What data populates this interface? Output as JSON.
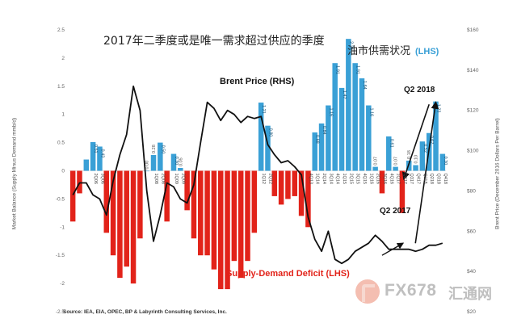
{
  "chart_data": {
    "type": "bar",
    "title": "2017年二季度或是唯一需求超过供应的季度",
    "subtitle": "油市供需状况",
    "subtitle_tag": "(LHS)",
    "ylabel": "Market Balance (Supply Minus Demand mmb/d)",
    "ylabel_right": "Brent Price (December 2016 Dollars Per Barrel)",
    "ylim": [
      -2.5,
      2.5
    ],
    "ylim_right": [
      20,
      160
    ],
    "left_ticks": [
      "2.5",
      "2",
      "1.5",
      "1",
      "0.5",
      "0",
      "-0.5",
      "-1",
      "-1.5",
      "-2",
      "-2.5"
    ],
    "right_ticks": [
      "$160",
      "$140",
      "$120",
      "$100",
      "$80",
      "$60",
      "$40",
      "$20"
    ],
    "x_tick_labels": [
      {
        "i": 3,
        "text": "2Q06"
      },
      {
        "i": 4,
        "text": "3Q06"
      },
      {
        "i": 12,
        "text": "1Q08"
      },
      {
        "i": 13,
        "text": "2Q08"
      },
      {
        "i": 15,
        "text": "1Q09"
      },
      {
        "i": 16,
        "text": "2Q09"
      },
      {
        "i": 28,
        "text": "1Q12"
      },
      {
        "i": 29,
        "text": "2Q12"
      },
      {
        "i": 35,
        "text": "4Q13"
      },
      {
        "i": 36,
        "text": "1Q14"
      },
      {
        "i": 37,
        "text": "2Q14"
      },
      {
        "i": 38,
        "text": "3Q14"
      },
      {
        "i": 39,
        "text": "4Q14"
      },
      {
        "i": 40,
        "text": "1Q15"
      },
      {
        "i": 41,
        "text": "2Q15"
      },
      {
        "i": 42,
        "text": "3Q15"
      },
      {
        "i": 43,
        "text": "4Q15"
      },
      {
        "i": 44,
        "text": "1Q16"
      },
      {
        "i": 45,
        "text": "2Q16"
      },
      {
        "i": 46,
        "text": "3Q16"
      },
      {
        "i": 47,
        "text": "4Q16"
      },
      {
        "i": 48,
        "text": "1Q17"
      },
      {
        "i": 49,
        "text": "Q217"
      },
      {
        "i": 50,
        "text": "Q317"
      },
      {
        "i": 51,
        "text": "Q417"
      },
      {
        "i": 52,
        "text": "Q118"
      },
      {
        "i": 53,
        "text": "Q218"
      },
      {
        "i": 54,
        "text": "Q318"
      },
      {
        "i": 55,
        "text": "Q418"
      }
    ],
    "bars": [
      {
        "v": -0.9
      },
      {
        "v": -0.4
      },
      {
        "v": 0.2
      },
      {
        "v": 0.51,
        "label": "0.51"
      },
      {
        "v": 0.43,
        "label": "0.43"
      },
      {
        "v": -1.1
      },
      {
        "v": -1.5
      },
      {
        "v": -1.9
      },
      {
        "v": -1.7
      },
      {
        "v": -2.0
      },
      {
        "v": -1.2
      },
      {
        "v": 0.0,
        "label": "0.00"
      },
      {
        "v": 0.28,
        "label": "0.28"
      },
      {
        "v": 0.5,
        "label": "0.50"
      },
      {
        "v": -0.9
      },
      {
        "v": 0.3,
        "label": "0.30"
      },
      {
        "v": 0.05,
        "label": "0.05"
      },
      {
        "v": -0.7
      },
      {
        "v": -1.2
      },
      {
        "v": -1.5
      },
      {
        "v": -1.5
      },
      {
        "v": -1.75
      },
      {
        "v": -2.1
      },
      {
        "v": -2.1
      },
      {
        "v": -1.6
      },
      {
        "v": -1.9
      },
      {
        "v": -1.6
      },
      {
        "v": -1.1
      },
      {
        "v": 1.21,
        "label": "1.21"
      },
      {
        "v": 0.8,
        "label": "0.80"
      },
      {
        "v": -0.45
      },
      {
        "v": -0.6
      },
      {
        "v": -0.5
      },
      {
        "v": -0.45
      },
      {
        "v": -0.8
      },
      {
        "v": -1.0
      },
      {
        "v": 0.68,
        "label": "0.68"
      },
      {
        "v": 0.84,
        "label": "0.84"
      },
      {
        "v": 1.16,
        "label": "1.16"
      },
      {
        "v": 1.91,
        "label": "1.91"
      },
      {
        "v": 1.47,
        "label": "1.47"
      },
      {
        "v": 2.34,
        "label": "2.34"
      },
      {
        "v": 1.91,
        "label": "1.91"
      },
      {
        "v": 1.64,
        "label": "1.64"
      },
      {
        "v": 1.16,
        "label": "1.16"
      },
      {
        "v": 0.07,
        "label": "0.07"
      },
      {
        "v": -0.4
      },
      {
        "v": 0.61,
        "label": "0.61"
      },
      {
        "v": 0.07,
        "label": "0.07"
      },
      {
        "v": -0.75
      },
      {
        "v": 0.18,
        "label": "0.18"
      },
      {
        "v": 0.1,
        "label": "0.10"
      },
      {
        "v": 0.52,
        "label": "0.52"
      },
      {
        "v": 0.67,
        "label": "0.67"
      },
      {
        "v": 1.23,
        "label": "1.23"
      },
      {
        "v": 0.3,
        "label": "0.30"
      }
    ],
    "series": [
      {
        "name": "Brent Price (RHS)",
        "values": [
          78,
          84,
          84,
          78,
          76,
          68,
          85,
          98,
          108,
          132,
          120,
          80,
          55,
          68,
          84,
          82,
          76,
          74,
          83,
          104,
          124,
          121,
          115,
          120,
          118,
          114,
          117,
          116,
          117,
          103,
          98,
          94,
          95,
          92,
          88,
          67,
          56,
          50,
          60,
          46,
          44,
          46,
          50,
          52,
          54,
          58,
          55,
          51,
          51,
          51,
          51,
          50,
          51,
          53,
          53,
          54
        ]
      }
    ],
    "annotations": {
      "brent_label": "Brent Price (RHS)",
      "deficit_label": "Supply-Demand Deficit (LHS)",
      "q2_2018": "Q2 2018",
      "q2_2017": "Q2 2017",
      "source": "Source: IEA, EIA, OPEC, BP & Labyrinth Consulting Services, Inc."
    },
    "colors": {
      "surplus": "#3aa0d6",
      "deficit": "#e2231a",
      "line": "#111111",
      "axis_text": "#666666"
    }
  },
  "watermark": {
    "text": "FX678",
    "text_cn": "汇通网"
  }
}
